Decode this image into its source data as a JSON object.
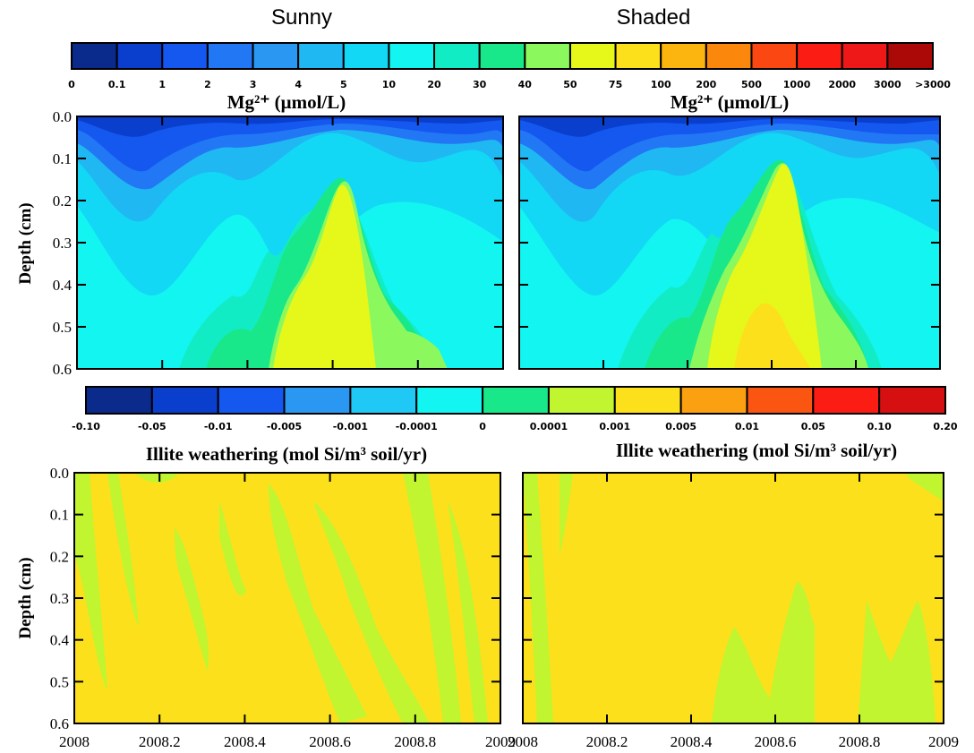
{
  "column_titles": [
    "Sunny",
    "Shaded"
  ],
  "mg_colorbar": {
    "ticks": [
      "0",
      "0.1",
      "1",
      "2",
      "3",
      "4",
      "5",
      "10",
      "20",
      "30",
      "40",
      "50",
      "75",
      "100",
      "200",
      "500",
      "1000",
      "2000",
      "3000",
      ">3000"
    ],
    "colors": [
      "#0a2a8c",
      "#0a3ecc",
      "#1458f0",
      "#2277f5",
      "#2a98f2",
      "#20b8f2",
      "#12d8f5",
      "#12f5f0",
      "#12ecc4",
      "#18e889",
      "#8bf85e",
      "#e6f71a",
      "#fce01c",
      "#fbb50e",
      "#fb870c",
      "#fb4812",
      "#fb1d14",
      "#ef1818",
      "#ab0808"
    ]
  },
  "illite_colorbar": {
    "ticks": [
      "-0.10",
      "-0.05",
      "-0.01",
      "-0.005",
      "-0.001",
      "-0.0001",
      "0",
      "0.0001",
      "0.001",
      "0.005",
      "0.01",
      "0.05",
      "0.10",
      "0.20"
    ],
    "colors": [
      "#0a2a8c",
      "#0a3ecc",
      "#1458f0",
      "#2a98f2",
      "#20c8f5",
      "#12f5f0",
      "#18e889",
      "#c0f530",
      "#fce01c",
      "#fba010",
      "#fb5512",
      "#fb1d14",
      "#d61010"
    ]
  },
  "chart_data": [
    {
      "type": "heatmap",
      "panel": "Sunny",
      "title": "Mg²⁺ (μmol/L)",
      "ylabel": "Depth (cm)",
      "xlim": [
        2008,
        2009
      ],
      "ylim": [
        0.6,
        0.0
      ],
      "yticks": [
        "0.0",
        "0.1",
        "0.2",
        "0.3",
        "0.4",
        "0.5",
        "0.6"
      ],
      "xticks": [],
      "dominant_levels": {
        "surface_0_to_0.1": "0.1-3",
        "middle": "4-20",
        "deep_2008.5_to_2008.75": "50-100"
      }
    },
    {
      "type": "heatmap",
      "panel": "Shaded",
      "title": "Mg²⁺ (μmol/L)",
      "ylabel": "",
      "xlim": [
        2008,
        2009
      ],
      "ylim": [
        0.6,
        0.0
      ],
      "yticks": [],
      "xticks": [],
      "dominant_levels": {
        "surface_0_to_0.1": "0.1-3",
        "middle": "4-20",
        "deep_2008.45_to_2008.75": "75-100"
      }
    },
    {
      "type": "heatmap",
      "panel": "Sunny",
      "title": "Illite weathering (mol Si/m³ soil/yr)",
      "ylabel": "Depth (cm)",
      "xlim": [
        2008,
        2009
      ],
      "ylim": [
        0.6,
        0.0
      ],
      "yticks": [
        "0.0",
        "0.1",
        "0.2",
        "0.3",
        "0.4",
        "0.5",
        "0.6"
      ],
      "xticks": [
        "2008",
        "2008.2",
        "2008.4",
        "2008.6",
        "2008.8",
        "2009"
      ],
      "dominant_levels": {
        "background": "0.001-0.005",
        "streaks": "0.0001-0.001"
      }
    },
    {
      "type": "heatmap",
      "panel": "Shaded",
      "title": "Illite weathering (mol Si/m³ soil/yr)",
      "ylabel": "",
      "xlim": [
        2008,
        2009
      ],
      "ylim": [
        0.6,
        0.0
      ],
      "yticks": [],
      "xticks": [
        "2008",
        "2008.2",
        "2008.4",
        "2008.6",
        "2008.8",
        "2009"
      ],
      "dominant_levels": {
        "background": "0.001-0.005",
        "patches": "0.0001-0.001"
      }
    }
  ]
}
